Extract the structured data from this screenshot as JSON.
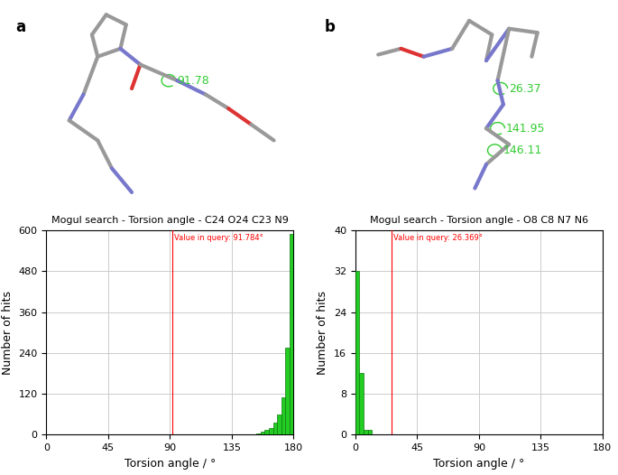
{
  "panels": [
    "a",
    "b"
  ],
  "structure_labels": [
    [
      "91.78"
    ],
    [
      "26.37",
      "141.95",
      "146.11"
    ]
  ],
  "chart_data": [
    {
      "type": "histogram",
      "title": "Mogul search - Torsion angle - C24 O24 C23 N9",
      "x_label": "Torsion angle / °",
      "y_label": "Number of hits",
      "bins": [
        0,
        3,
        6,
        9,
        12,
        15,
        18,
        21,
        24,
        27,
        30,
        33,
        36,
        39,
        42,
        45,
        48,
        51,
        54,
        57,
        60,
        63,
        66,
        69,
        72,
        75,
        78,
        81,
        84,
        87,
        90,
        93,
        96,
        99,
        102,
        105,
        108,
        111,
        114,
        117,
        120,
        123,
        126,
        129,
        132,
        135,
        138,
        141,
        144,
        147,
        150,
        153,
        156,
        159,
        162,
        165,
        168,
        171,
        174,
        177,
        180
      ],
      "counts": [
        2,
        0,
        0,
        0,
        0,
        0,
        0,
        0,
        0,
        0,
        0,
        0,
        0,
        0,
        0,
        0,
        0,
        0,
        0,
        0,
        0,
        0,
        0,
        0,
        0,
        0,
        0,
        0,
        0,
        0,
        0,
        0,
        0,
        0,
        0,
        0,
        0,
        0,
        0,
        0,
        0,
        2,
        0,
        0,
        0,
        0,
        0,
        0,
        0,
        0,
        2,
        4,
        8,
        14,
        20,
        35,
        60,
        110,
        255,
        590
      ],
      "color": "#22cc22",
      "xlim": [
        0,
        180
      ],
      "xticks": [
        0,
        45,
        90,
        135,
        180
      ],
      "ylim": [
        0,
        600
      ],
      "yticks": [
        0,
        120,
        240,
        360,
        480,
        600
      ],
      "grid": true,
      "annotations": [
        {
          "x": 91.784,
          "label": "Value in query: 91.784°",
          "color": "#ff0000"
        }
      ]
    },
    {
      "type": "histogram",
      "title": "Mogul search - Torsion angle - O8 C8 N7 N6",
      "x_label": "Torsion angle / °",
      "y_label": "Number of hits",
      "bins": [
        0,
        3,
        6,
        9,
        12
      ],
      "counts": [
        32,
        12,
        1,
        1
      ],
      "color": "#22cc22",
      "xlim": [
        0,
        180
      ],
      "xticks": [
        0,
        45,
        90,
        135,
        180
      ],
      "ylim": [
        0,
        40
      ],
      "yticks": [
        0,
        8,
        16,
        24,
        32,
        40
      ],
      "grid": true,
      "annotations": [
        {
          "x": 26.369,
          "label": "Value in query: 26.369°",
          "color": "#ff0000"
        }
      ]
    }
  ]
}
